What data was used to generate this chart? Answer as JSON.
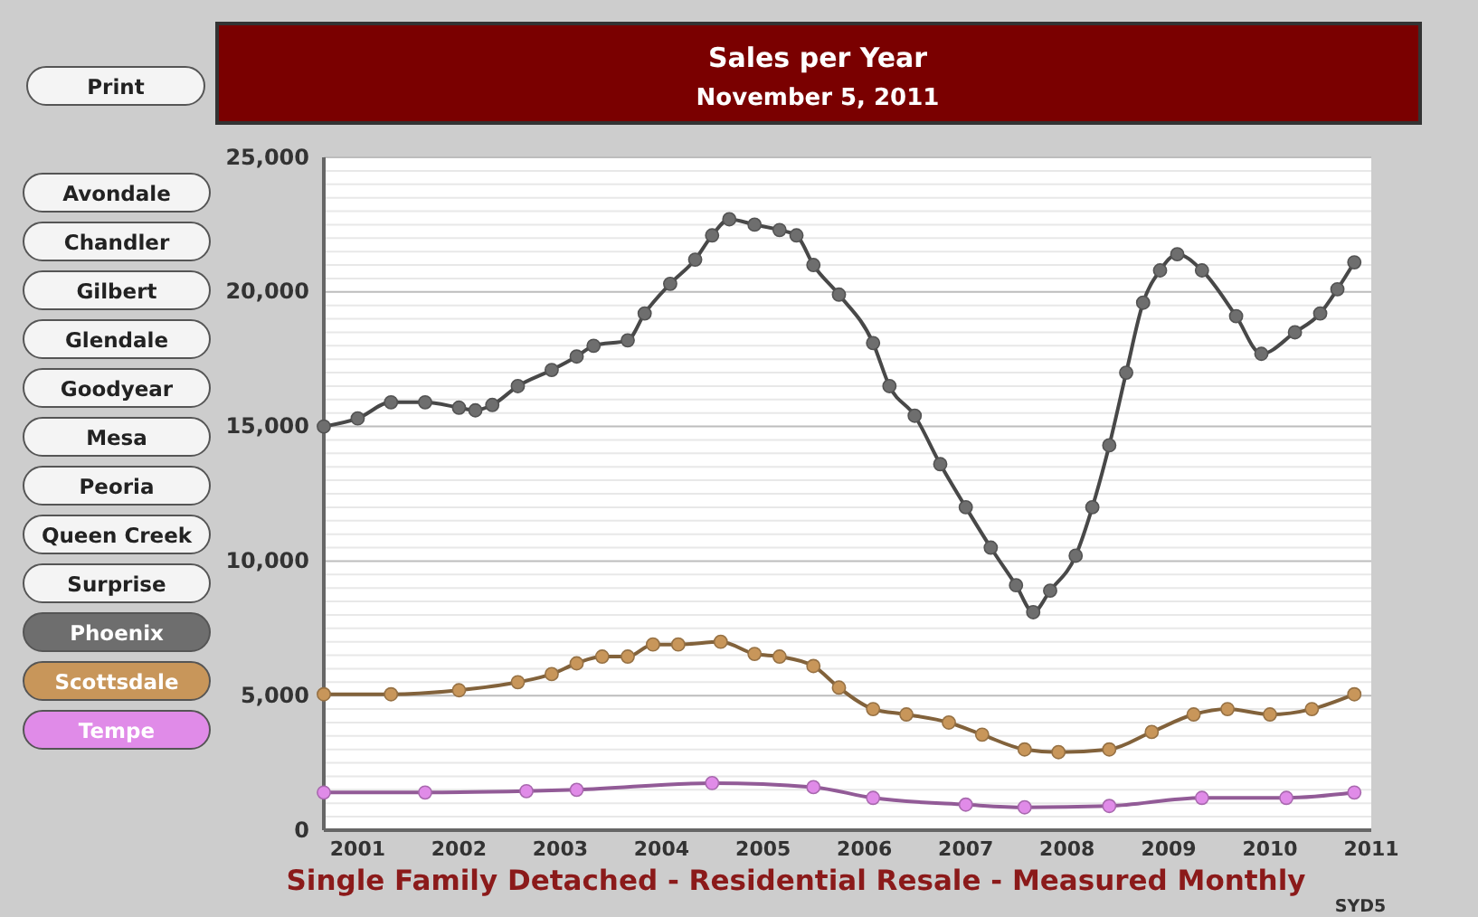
{
  "chart_data": {
    "type": "line",
    "title": "Sales per Year",
    "subtitle": "November 5, 2011",
    "xlim": [
      "2000-09",
      "2011-01"
    ],
    "xticks": [
      "2001",
      "2002",
      "2003",
      "2004",
      "2005",
      "2006",
      "2007",
      "2008",
      "2009",
      "2010",
      "2011"
    ],
    "ylim": [
      0,
      25000
    ],
    "yticks": [
      {
        "value": 0,
        "label": "0"
      },
      {
        "value": 500,
        "label": null
      },
      {
        "value": 1000,
        "label": null
      },
      {
        "value": 1500,
        "label": null
      },
      {
        "value": 2000,
        "label": null
      },
      {
        "value": 2500,
        "label": null
      },
      {
        "value": 3000,
        "label": null
      },
      {
        "value": 3500,
        "label": null
      },
      {
        "value": 4000,
        "label": null
      },
      {
        "value": 4500,
        "label": null
      },
      {
        "value": 5000,
        "label": "5,000"
      },
      {
        "value": 5500,
        "label": null
      },
      {
        "value": 6000,
        "label": null
      },
      {
        "value": 6500,
        "label": null
      },
      {
        "value": 7000,
        "label": null
      },
      {
        "value": 7500,
        "label": null
      },
      {
        "value": 8000,
        "label": null
      },
      {
        "value": 8500,
        "label": null
      },
      {
        "value": 9000,
        "label": null
      },
      {
        "value": 9500,
        "label": null
      },
      {
        "value": 10000,
        "label": "10,000"
      },
      {
        "value": 10500,
        "label": null
      },
      {
        "value": 11000,
        "label": null
      },
      {
        "value": 11500,
        "label": null
      },
      {
        "value": 12000,
        "label": null
      },
      {
        "value": 12500,
        "label": null
      },
      {
        "value": 13000,
        "label": null
      },
      {
        "value": 13500,
        "label": null
      },
      {
        "value": 14000,
        "label": null
      },
      {
        "value": 14500,
        "label": null
      },
      {
        "value": 15000,
        "label": "15,000"
      },
      {
        "value": 15500,
        "label": null
      },
      {
        "value": 16000,
        "label": null
      },
      {
        "value": 16500,
        "label": null
      },
      {
        "value": 17000,
        "label": null
      },
      {
        "value": 17500,
        "label": null
      },
      {
        "value": 18000,
        "label": null
      },
      {
        "value": 18500,
        "label": null
      },
      {
        "value": 19000,
        "label": null
      },
      {
        "value": 19500,
        "label": null
      },
      {
        "value": 20000,
        "label": "20,000"
      },
      {
        "value": 20500,
        "label": null
      },
      {
        "value": 21000,
        "label": null
      },
      {
        "value": 21500,
        "label": null
      },
      {
        "value": 22000,
        "label": null
      },
      {
        "value": 22500,
        "label": null
      },
      {
        "value": 23000,
        "label": null
      },
      {
        "value": 23500,
        "label": null
      },
      {
        "value": 24000,
        "label": null
      },
      {
        "value": 24500,
        "label": null
      },
      {
        "value": 25000,
        "label": "25,000"
      }
    ],
    "grid": "y",
    "legend": "left",
    "marker": "circle",
    "line_style": "solid",
    "series": [
      {
        "name": "Phoenix",
        "color": "#6e6e6e",
        "x": [
          "2000-09",
          "2001-01",
          "2001-05",
          "2001-09",
          "2002-01",
          "2002-03",
          "2002-05",
          "2002-08",
          "2002-12",
          "2003-03",
          "2003-05",
          "2003-09",
          "2003-11",
          "2004-02",
          "2004-05",
          "2004-07",
          "2004-09",
          "2004-12",
          "2005-03",
          "2005-05",
          "2005-07",
          "2005-10",
          "2006-02",
          "2006-04",
          "2006-07",
          "2006-10",
          "2007-01",
          "2007-04",
          "2007-07",
          "2007-09",
          "2007-11",
          "2008-02",
          "2008-04",
          "2008-06",
          "2008-08",
          "2008-10",
          "2008-12",
          "2009-02",
          "2009-05",
          "2009-09",
          "2009-12",
          "2010-04",
          "2010-07",
          "2010-09",
          "2010-11"
        ],
        "values": [
          15000,
          15300,
          15900,
          15900,
          15700,
          15600,
          15800,
          16500,
          17100,
          17600,
          18000,
          18200,
          19200,
          20300,
          21200,
          22100,
          22700,
          22500,
          22300,
          22100,
          21000,
          19900,
          18100,
          16500,
          15400,
          13600,
          12000,
          10500,
          9100,
          8100,
          8900,
          10200,
          12000,
          14300,
          17000,
          19600,
          20800,
          21400,
          20800,
          19100,
          17700,
          18500,
          19200,
          20100,
          21100
        ]
      },
      {
        "name": "Scottsdale",
        "color": "#c8965a",
        "x": [
          "2000-09",
          "2001-05",
          "2002-01",
          "2002-08",
          "2002-12",
          "2003-03",
          "2003-06",
          "2003-09",
          "2003-12",
          "2004-03",
          "2004-08",
          "2004-12",
          "2005-03",
          "2005-07",
          "2005-10",
          "2006-02",
          "2006-06",
          "2006-11",
          "2007-03",
          "2007-08",
          "2007-12",
          "2008-06",
          "2008-11",
          "2009-04",
          "2009-08",
          "2010-01",
          "2010-06",
          "2010-11"
        ],
        "values": [
          5050,
          5050,
          5200,
          5500,
          5800,
          6200,
          6450,
          6450,
          6900,
          6900,
          7000,
          6550,
          6450,
          6100,
          5300,
          4500,
          4300,
          4000,
          3550,
          3000,
          2900,
          3000,
          3650,
          4300,
          4500,
          4300,
          4500,
          5050
        ]
      },
      {
        "name": "Tempe",
        "color": "#e08be8",
        "x": [
          "2000-09",
          "2001-09",
          "2002-09",
          "2003-03",
          "2004-07",
          "2005-07",
          "2006-02",
          "2007-01",
          "2007-08",
          "2008-06",
          "2009-05",
          "2010-03",
          "2010-11"
        ],
        "values": [
          1400,
          1400,
          1450,
          1500,
          1750,
          1600,
          1200,
          950,
          850,
          900,
          1200,
          1200,
          1400
        ]
      }
    ],
    "annotations": [
      "Print",
      "Avondale",
      "Chandler",
      "Gilbert",
      "Glendale",
      "Goodyear",
      "Mesa",
      "Peoria",
      "Queen Creek",
      "Surprise",
      "Single Family Detached - Residential Resale - Measured Monthly",
      "SYD5"
    ]
  }
}
